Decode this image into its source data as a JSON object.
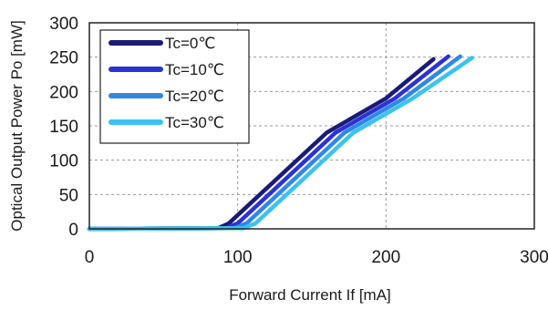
{
  "chart_data": {
    "type": "line",
    "title": "",
    "xlabel": "Forward Current If [mA]",
    "ylabel": "Optical Output Power Po [mW]",
    "xlim": [
      0,
      300
    ],
    "ylim": [
      0,
      300
    ],
    "xticks": [
      "0",
      "100",
      "200",
      "300"
    ],
    "yticks": [
      "0",
      "50",
      "100",
      "150",
      "200",
      "250",
      "300"
    ],
    "grid": "dashed",
    "legend_position": "top-left",
    "series": [
      {
        "name": "Tc=0℃",
        "color": "#1a1a78",
        "points": [
          [
            0,
            0
          ],
          [
            87,
            1
          ],
          [
            94,
            8
          ],
          [
            120,
            60
          ],
          [
            160,
            140
          ],
          [
            200,
            190
          ],
          [
            232,
            247
          ]
        ]
      },
      {
        "name": "Tc=10℃",
        "color": "#2a32d8",
        "points": [
          [
            0,
            0
          ],
          [
            92,
            1
          ],
          [
            100,
            8
          ],
          [
            126,
            60
          ],
          [
            166,
            140
          ],
          [
            206,
            190
          ],
          [
            242,
            251
          ]
        ]
      },
      {
        "name": "Tc=20℃",
        "color": "#2f88e6",
        "points": [
          [
            0,
            0
          ],
          [
            98,
            1
          ],
          [
            106,
            8
          ],
          [
            132,
            60
          ],
          [
            172,
            140
          ],
          [
            212,
            190
          ],
          [
            250,
            251
          ]
        ]
      },
      {
        "name": "Tc=30℃",
        "color": "#3cc2ee",
        "points": [
          [
            0,
            0
          ],
          [
            104,
            1
          ],
          [
            112,
            8
          ],
          [
            138,
            60
          ],
          [
            178,
            140
          ],
          [
            218,
            190
          ],
          [
            258,
            249
          ]
        ]
      }
    ]
  }
}
